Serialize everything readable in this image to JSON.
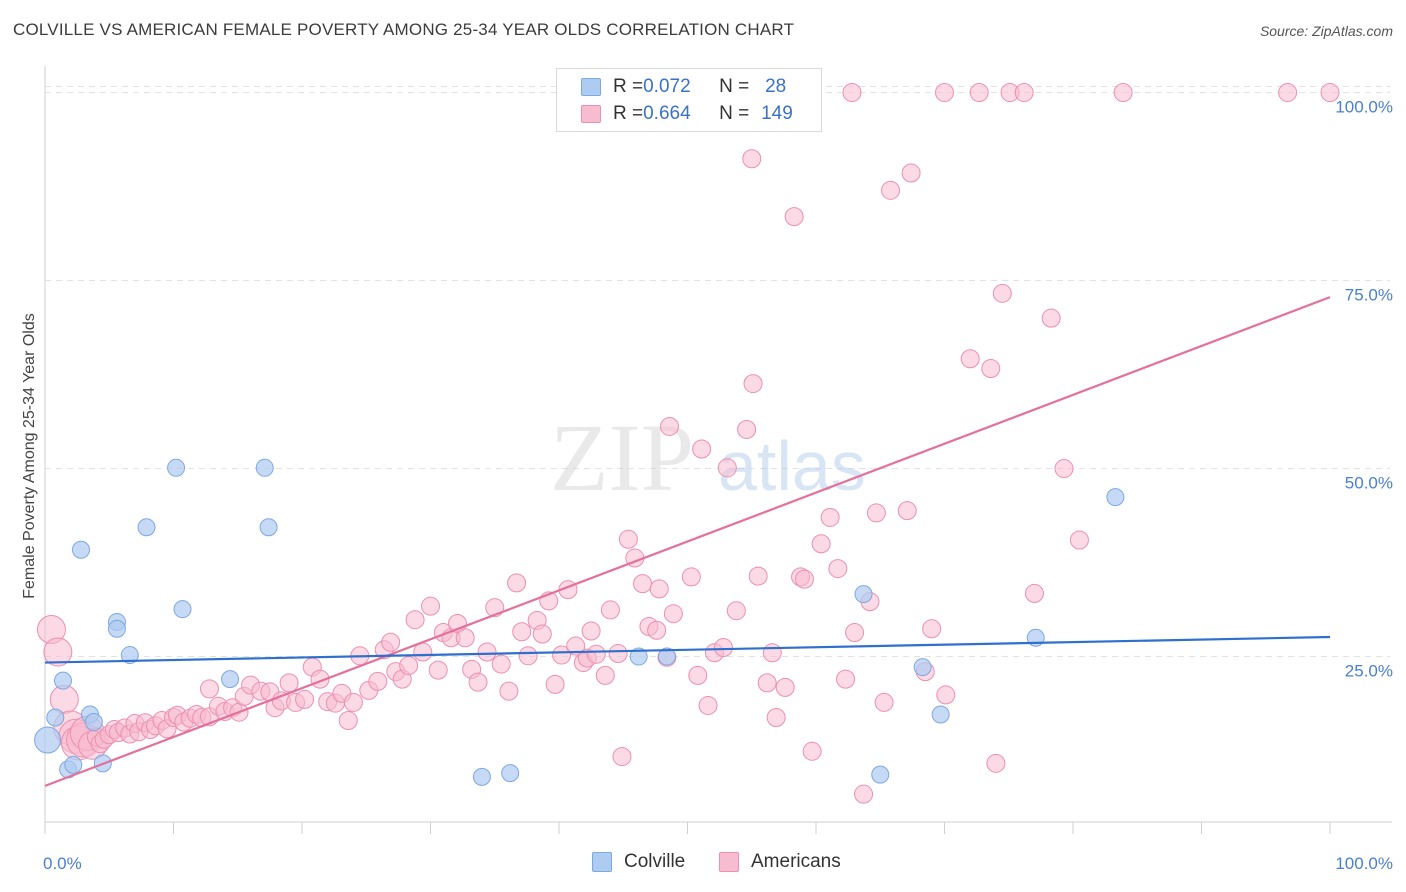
{
  "header": {
    "title": "COLVILLE VS AMERICAN FEMALE POVERTY AMONG 25-34 YEAR OLDS CORRELATION CHART",
    "source": "Source: ZipAtlas.com"
  },
  "legend": {
    "rows": [
      {
        "r_label": "R = ",
        "r_value": "0.072",
        "n_label": "N = ",
        "n_value": "28"
      },
      {
        "r_label": "R = ",
        "r_value": "0.664",
        "n_label": "N = ",
        "n_value": "149"
      }
    ]
  },
  "bottom_legend": {
    "series_a": "Colville",
    "series_b": "Americans"
  },
  "watermark": {
    "zip": "ZIP",
    "atlas": "atlas"
  },
  "colors": {
    "colville_fill": "#aecbf2",
    "colville_stroke": "#7da8e0",
    "colville_line": "#2f6fce",
    "americans_fill": "#f8bcd0",
    "americans_stroke": "#ec8fb0",
    "americans_line": "#e4709b",
    "grid": "#e2e2e2",
    "tick_text": "#4a7fcf"
  },
  "chart_data": {
    "type": "scatter",
    "title": "COLVILLE VS AMERICAN FEMALE POVERTY AMONG 25-34 YEAR OLDS CORRELATION CHART",
    "xlabel": "",
    "ylabel": "Female Poverty Among 25-34 Year Olds",
    "xlim": [
      0,
      100
    ],
    "ylim": [
      3,
      103
    ],
    "x_ticks": [
      "0.0%",
      "100.0%"
    ],
    "y_ticks": [
      "25.0%",
      "50.0%",
      "75.0%",
      "100.0%"
    ],
    "y_tick_values": [
      25,
      50,
      75,
      100
    ],
    "grid": true,
    "legend_position": "top-center",
    "series": [
      {
        "name": "Colville",
        "r": 0.072,
        "n": 28,
        "trend": {
          "x0": 0,
          "y0": 24.2,
          "x1": 100,
          "y1": 27.6
        },
        "points": [
          [
            0.2,
            13.9
          ],
          [
            0.8,
            16.9
          ],
          [
            1.4,
            21.8
          ],
          [
            1.8,
            10.0
          ],
          [
            2.2,
            10.6
          ],
          [
            2.8,
            39.2
          ],
          [
            3.5,
            17.3
          ],
          [
            3.8,
            16.3
          ],
          [
            4.5,
            10.8
          ],
          [
            5.6,
            29.6
          ],
          [
            5.6,
            28.7
          ],
          [
            6.6,
            25.2
          ],
          [
            7.9,
            42.2
          ],
          [
            10.2,
            50.1
          ],
          [
            10.7,
            31.3
          ],
          [
            14.4,
            22.0
          ],
          [
            17.1,
            50.1
          ],
          [
            17.4,
            42.2
          ],
          [
            34.0,
            9.0
          ],
          [
            36.2,
            9.5
          ],
          [
            46.2,
            25.0
          ],
          [
            48.4,
            25.0
          ],
          [
            63.7,
            33.3
          ],
          [
            65.0,
            9.3
          ],
          [
            68.3,
            23.6
          ],
          [
            69.7,
            17.3
          ],
          [
            77.1,
            27.5
          ],
          [
            83.3,
            46.2
          ]
        ]
      },
      {
        "name": "Americans",
        "r": 0.664,
        "n": 149,
        "trend": {
          "x0": 0,
          "y0": 7.8,
          "x1": 100,
          "y1": 72.8
        },
        "points": [
          [
            0.5,
            28.6
          ],
          [
            1.0,
            25.6
          ],
          [
            1.5,
            19.3
          ],
          [
            2.0,
            15.5
          ],
          [
            2.4,
            14.4
          ],
          [
            2.6,
            13.5
          ],
          [
            3.0,
            13.9
          ],
          [
            3.3,
            14.8
          ],
          [
            3.7,
            13.2
          ],
          [
            4.0,
            14.3
          ],
          [
            4.3,
            13.4
          ],
          [
            4.6,
            14.0
          ],
          [
            5.0,
            14.6
          ],
          [
            5.4,
            15.3
          ],
          [
            5.7,
            14.9
          ],
          [
            6.2,
            15.5
          ],
          [
            6.6,
            14.7
          ],
          [
            7.0,
            16.1
          ],
          [
            7.3,
            15.0
          ],
          [
            7.8,
            16.2
          ],
          [
            8.2,
            15.3
          ],
          [
            8.6,
            15.8
          ],
          [
            9.1,
            16.5
          ],
          [
            9.5,
            15.4
          ],
          [
            10.0,
            16.9
          ],
          [
            10.3,
            17.2
          ],
          [
            10.8,
            16.3
          ],
          [
            11.3,
            16.8
          ],
          [
            11.8,
            17.3
          ],
          [
            12.2,
            16.9
          ],
          [
            12.8,
            17.0
          ],
          [
            12.8,
            20.7
          ],
          [
            13.5,
            18.4
          ],
          [
            14.0,
            17.7
          ],
          [
            14.6,
            18.2
          ],
          [
            15.1,
            17.6
          ],
          [
            15.5,
            19.7
          ],
          [
            16.0,
            21.2
          ],
          [
            16.8,
            20.4
          ],
          [
            17.5,
            20.3
          ],
          [
            17.9,
            18.2
          ],
          [
            18.4,
            19.1
          ],
          [
            19.0,
            21.5
          ],
          [
            19.5,
            18.9
          ],
          [
            20.2,
            19.3
          ],
          [
            20.8,
            23.6
          ],
          [
            21.4,
            22.0
          ],
          [
            22.0,
            19.0
          ],
          [
            22.6,
            18.8
          ],
          [
            23.1,
            20.1
          ],
          [
            23.6,
            16.5
          ],
          [
            24.0,
            18.9
          ],
          [
            24.5,
            25.1
          ],
          [
            25.2,
            20.5
          ],
          [
            25.9,
            21.7
          ],
          [
            26.4,
            25.9
          ],
          [
            26.9,
            26.9
          ],
          [
            27.3,
            23.0
          ],
          [
            27.8,
            22.0
          ],
          [
            28.3,
            23.8
          ],
          [
            28.8,
            29.9
          ],
          [
            29.4,
            25.6
          ],
          [
            30.0,
            31.7
          ],
          [
            30.6,
            23.2
          ],
          [
            31.0,
            28.2
          ],
          [
            31.6,
            27.5
          ],
          [
            32.1,
            29.4
          ],
          [
            32.7,
            27.5
          ],
          [
            33.2,
            23.3
          ],
          [
            33.7,
            21.6
          ],
          [
            34.4,
            25.6
          ],
          [
            35.0,
            31.5
          ],
          [
            35.5,
            24.0
          ],
          [
            36.1,
            20.4
          ],
          [
            36.7,
            34.8
          ],
          [
            37.1,
            28.3
          ],
          [
            37.6,
            25.1
          ],
          [
            38.3,
            29.8
          ],
          [
            38.7,
            28.0
          ],
          [
            39.2,
            32.4
          ],
          [
            39.7,
            21.3
          ],
          [
            40.2,
            25.2
          ],
          [
            40.7,
            33.9
          ],
          [
            41.3,
            26.4
          ],
          [
            41.9,
            24.2
          ],
          [
            42.2,
            24.8
          ],
          [
            42.5,
            28.4
          ],
          [
            42.9,
            25.3
          ],
          [
            43.6,
            22.5
          ],
          [
            44.0,
            31.2
          ],
          [
            44.6,
            25.4
          ],
          [
            44.9,
            11.7
          ],
          [
            45.4,
            40.6
          ],
          [
            45.9,
            38.1
          ],
          [
            46.5,
            34.7
          ],
          [
            47.0,
            29.0
          ],
          [
            47.6,
            28.5
          ],
          [
            47.8,
            34.0
          ],
          [
            48.4,
            24.9
          ],
          [
            48.6,
            55.6
          ],
          [
            48.9,
            30.7
          ],
          [
            49.3,
            98.3
          ],
          [
            50.3,
            35.6
          ],
          [
            50.8,
            22.5
          ],
          [
            51.1,
            52.6
          ],
          [
            51.6,
            18.5
          ],
          [
            52.1,
            25.5
          ],
          [
            52.8,
            26.2
          ],
          [
            53.1,
            50.1
          ],
          [
            53.8,
            31.1
          ],
          [
            54.6,
            55.2
          ],
          [
            55.0,
            91.2
          ],
          [
            55.1,
            61.3
          ],
          [
            55.5,
            35.7
          ],
          [
            56.2,
            21.5
          ],
          [
            56.6,
            25.5
          ],
          [
            56.9,
            16.9
          ],
          [
            57.6,
            20.9
          ],
          [
            58.3,
            83.5
          ],
          [
            58.8,
            35.6
          ],
          [
            59.1,
            35.3
          ],
          [
            59.7,
            12.4
          ],
          [
            60.4,
            40.0
          ],
          [
            61.1,
            43.5
          ],
          [
            61.7,
            36.7
          ],
          [
            62.3,
            22.0
          ],
          [
            62.8,
            100.0
          ],
          [
            63.0,
            28.2
          ],
          [
            63.7,
            6.7
          ],
          [
            64.2,
            32.3
          ],
          [
            64.7,
            44.1
          ],
          [
            65.3,
            18.9
          ],
          [
            65.8,
            87.0
          ],
          [
            67.1,
            44.4
          ],
          [
            67.4,
            89.3
          ],
          [
            68.5,
            23.0
          ],
          [
            69.0,
            28.7
          ],
          [
            70.0,
            100.0
          ],
          [
            70.1,
            19.9
          ],
          [
            72.0,
            64.6
          ],
          [
            72.7,
            100.0
          ],
          [
            73.6,
            63.3
          ],
          [
            74.0,
            10.8
          ],
          [
            74.5,
            73.3
          ],
          [
            75.1,
            100.0
          ],
          [
            76.2,
            100.0
          ],
          [
            77.0,
            33.4
          ],
          [
            78.3,
            70.0
          ],
          [
            79.3,
            50.0
          ],
          [
            80.5,
            40.5
          ],
          [
            83.9,
            100.0
          ],
          [
            96.7,
            100.0
          ],
          [
            100.0,
            100.0
          ]
        ]
      }
    ]
  }
}
